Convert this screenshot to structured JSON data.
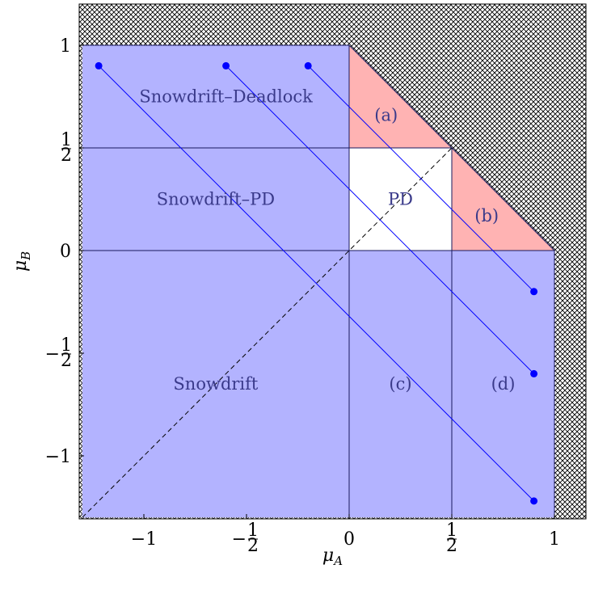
{
  "chart_data": {
    "type": "diagram",
    "axes": {
      "x": {
        "label": "μA",
        "range": [
          -1.3,
          1.15
        ]
      },
      "y": {
        "label": "μB",
        "range": [
          -1.3,
          1.2
        ]
      },
      "x_ticks": [
        {
          "value": -1,
          "label": "−1"
        },
        {
          "value": -0.5,
          "label": "−1/2"
        },
        {
          "value": 0,
          "label": "0"
        },
        {
          "value": 0.5,
          "label": "1/2"
        },
        {
          "value": 1,
          "label": "1"
        }
      ],
      "y_ticks": [
        {
          "value": 1,
          "label": "1"
        },
        {
          "value": 0.5,
          "label": "1/2"
        },
        {
          "value": 0,
          "label": "0"
        },
        {
          "value": -0.5,
          "label": "−1/2"
        },
        {
          "value": -1,
          "label": "−1"
        }
      ]
    },
    "regions": [
      {
        "name": "Snowdrift–Deadlock",
        "label": "Snowdrift–Deadlock",
        "label_at": [
          -0.6,
          0.75
        ]
      },
      {
        "name": "Snowdrift–PD",
        "label": "Snowdrift–PD",
        "label_at": [
          -0.65,
          0.25
        ]
      },
      {
        "name": "PD",
        "label": "PD",
        "label_at": [
          0.25,
          0.25
        ]
      },
      {
        "name": "Snowdrift",
        "label": "Snowdrift",
        "label_at": [
          -0.65,
          -0.65
        ]
      },
      {
        "name": "(a)",
        "label": "(a)",
        "label_at": [
          0.18,
          0.66
        ]
      },
      {
        "name": "(b)",
        "label": "(b)",
        "label_at": [
          0.67,
          0.17
        ]
      },
      {
        "name": "(c)",
        "label": "(c)",
        "label_at": [
          0.25,
          -0.65
        ]
      },
      {
        "name": "(d)",
        "label": "(d)",
        "label_at": [
          0.75,
          -0.65
        ]
      }
    ],
    "trajectories": [
      {
        "start": [
          -1.22,
          0.9
        ],
        "end": [
          0.9,
          -1.22
        ]
      },
      {
        "start": [
          -0.6,
          0.9
        ],
        "end": [
          0.9,
          -0.6
        ]
      },
      {
        "start": [
          -0.2,
          0.9
        ],
        "end": [
          0.9,
          -0.2
        ]
      }
    ],
    "diagonal": {
      "from": [
        -1.3,
        -1.3
      ],
      "to": [
        0.5,
        0.5
      ],
      "style": "dashed"
    },
    "colors": {
      "blue_region": "#b3b3ff",
      "red_region": "#ffb3b3",
      "pd_region": "#ffffff",
      "trajectory": "#0000ff",
      "hatch": "#000000"
    }
  }
}
